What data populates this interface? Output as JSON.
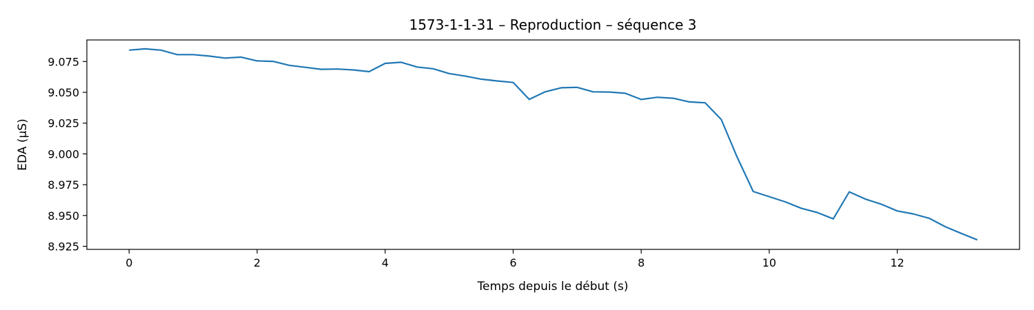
{
  "chart_data": {
    "type": "line",
    "title": "1573-1-1-31 – Reproduction – séquence 3",
    "xlabel": "Temps depuis le début (s)",
    "ylabel": "EDA (µS)",
    "xlim": [
      -0.66,
      13.91
    ],
    "ylim": [
      8.9225,
      9.0925
    ],
    "xticks": [
      0,
      2,
      4,
      6,
      8,
      10,
      12
    ],
    "xtick_labels": [
      "0",
      "2",
      "4",
      "6",
      "8",
      "10",
      "12"
    ],
    "yticks": [
      8.925,
      8.95,
      8.975,
      9.0,
      9.025,
      9.05,
      9.075
    ],
    "ytick_labels": [
      "8.925",
      "8.950",
      "8.975",
      "9.000",
      "9.025",
      "9.050",
      "9.075"
    ],
    "grid": false,
    "line_color": "#1f77b4",
    "series": [
      {
        "x": [
          0,
          0.25,
          0.5,
          0.75,
          1.0,
          1.25,
          1.5,
          1.75,
          2.0,
          2.25,
          2.5,
          2.75,
          3.0,
          3.25,
          3.5,
          3.75,
          4.0,
          4.25,
          4.5,
          4.75,
          5.0,
          5.25,
          5.5,
          5.75,
          6.0,
          6.25,
          6.5,
          6.75,
          7.0,
          7.25,
          7.5,
          7.75,
          8.0,
          8.25,
          8.5,
          8.75,
          9.0,
          9.25,
          9.5,
          9.75,
          10.0,
          10.25,
          10.5,
          10.75,
          11.0,
          11.25,
          11.5,
          11.75,
          12.0,
          12.25,
          12.5,
          12.75,
          13.0,
          13.25
        ],
        "y": [
          9.0842,
          9.0853,
          9.0842,
          9.0806,
          9.0806,
          9.0794,
          9.0778,
          9.0786,
          9.0755,
          9.0751,
          9.0719,
          9.0703,
          9.0687,
          9.0689,
          9.0682,
          9.0668,
          9.0735,
          9.0744,
          9.0705,
          9.0691,
          9.0652,
          9.0632,
          9.0607,
          9.0592,
          9.058,
          9.0443,
          9.0504,
          9.0537,
          9.054,
          9.0504,
          9.0502,
          9.0492,
          9.0442,
          9.046,
          9.0452,
          9.0422,
          9.0415,
          9.0279,
          8.9972,
          8.9695,
          8.9653,
          8.9611,
          8.9559,
          8.9524,
          8.9473,
          8.9692,
          8.9634,
          8.9592,
          8.9537,
          8.9513,
          8.9477,
          8.9409,
          8.9355,
          8.9302
        ]
      }
    ]
  }
}
